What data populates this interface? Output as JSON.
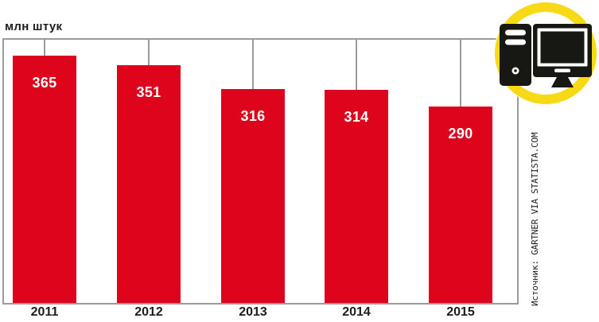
{
  "header": {
    "unit_label": "млн штук"
  },
  "chart_data": {
    "type": "bar",
    "title": "",
    "xlabel": "",
    "ylabel": "млн штук",
    "categories": [
      "2011",
      "2012",
      "2013",
      "2014",
      "2015"
    ],
    "values": [
      365,
      351,
      316,
      314,
      290
    ],
    "ylim": [
      0,
      390
    ],
    "grid": false,
    "legend": "none",
    "value_labels_shown": true,
    "bar_color": "#de041c",
    "value_label_color": "#ffffff",
    "frame_line_color": "#9b9b9b",
    "label_text_color": "#1d1d1b"
  },
  "source": {
    "label": "Источник: GARTNER VIA STATISTA.COM"
  },
  "icon": {
    "name": "desktop-computer-icon",
    "ring_color": "#f7d915",
    "glyph_color": "#171713",
    "background": "#ffffff"
  }
}
